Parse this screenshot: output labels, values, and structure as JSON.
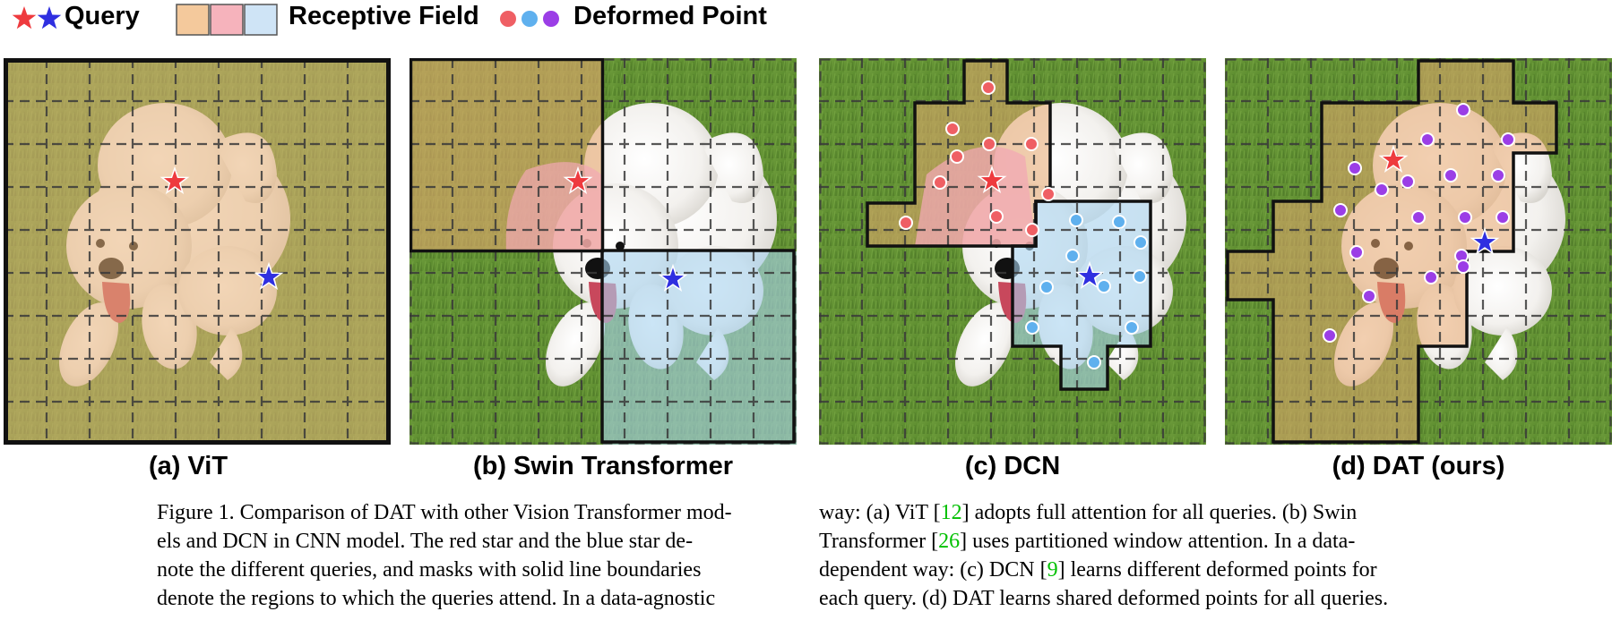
{
  "legend": {
    "query_label": "Query",
    "receptive_label": "Receptive Field",
    "deformed_label": "Deformed Point",
    "colors": {
      "red_star": "#ee3a3e",
      "blue_star": "#2f2fe0",
      "field_orange": "#f4c99c",
      "field_pink": "#f6b3bc",
      "field_blue": "#cfe4f6",
      "point_red": "#ef5f64",
      "point_blue": "#5fb0ee",
      "point_purple": "#9b3ee6"
    }
  },
  "panels": [
    {
      "label": "(a) ViT"
    },
    {
      "label": "(b) Swin Transformer"
    },
    {
      "label": "(c) DCN"
    },
    {
      "label": "(d) DAT (ours)"
    }
  ],
  "caption": {
    "left": {
      "line1": "Figure 1. Comparison of DAT with other Vision Transformer mod-",
      "line2": "els and DCN in CNN model.  The red star and the blue star de-",
      "line3": "note the different queries, and masks with solid line boundaries",
      "line4": "denote the regions to which the queries attend.  In a data-agnostic"
    },
    "right": {
      "line1_a": "way:  (a) ViT [",
      "ref_vit": "12",
      "line1_b": "] adopts full attention for all queries.  (b) Swin",
      "line2_a": "Transformer [",
      "ref_swin": "26",
      "line2_b": "] uses partitioned window attention.  In a data-",
      "line3_a": "dependent way: (c) DCN [",
      "ref_dcn": "9",
      "line3_b": "] learns different deformed points for",
      "line4": "each query. (d) DAT learns shared deformed points for all queries."
    }
  }
}
